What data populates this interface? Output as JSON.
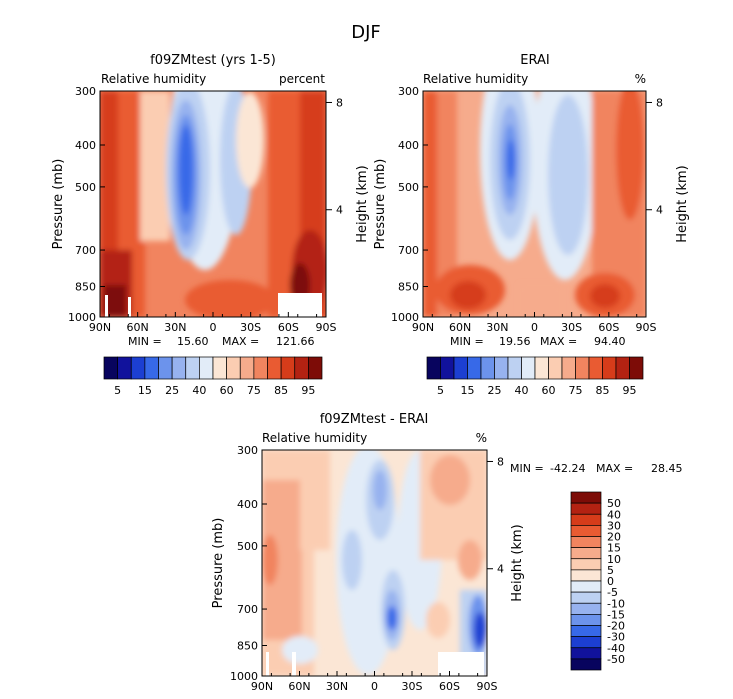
{
  "figure": {
    "title": "DJF"
  },
  "chart_data": [
    {
      "type": "heatmap",
      "title": "f09ZMtest (yrs 1-5)",
      "subtitle_left": "Relative humidity",
      "subtitle_right": "percent",
      "ylabel": "Pressure (mb)",
      "ylabel_right": "Height (km)",
      "x_ticks": [
        "90N",
        "60N",
        "30N",
        "0",
        "30S",
        "60S",
        "90S"
      ],
      "y_ticks": [
        "300",
        "400",
        "500",
        "700",
        "850",
        "1000"
      ],
      "right_ticks": [
        "8",
        "4"
      ],
      "min_label": "MIN =",
      "min_value": "15.60",
      "max_label": "MAX =",
      "max_value": "121.66",
      "colorbar_labels": [
        "5",
        "15",
        "25",
        "40",
        "60",
        "75",
        "85",
        "95"
      ]
    },
    {
      "type": "heatmap",
      "title": "ERAI",
      "subtitle_left": "Relative humidity",
      "subtitle_right": "%",
      "ylabel": "Pressure (mb)",
      "ylabel_right": "Height (km)",
      "x_ticks": [
        "90N",
        "60N",
        "30N",
        "0",
        "30S",
        "60S",
        "90S"
      ],
      "y_ticks": [
        "300",
        "400",
        "500",
        "700",
        "850",
        "1000"
      ],
      "right_ticks": [
        "8",
        "4"
      ],
      "min_label": "MIN =",
      "min_value": "19.56",
      "max_label": "MAX =",
      "max_value": "94.40",
      "colorbar_labels": [
        "5",
        "15",
        "25",
        "40",
        "60",
        "75",
        "85",
        "95"
      ]
    },
    {
      "type": "heatmap",
      "title": "f09ZMtest - ERAI",
      "subtitle_left": "Relative humidity",
      "subtitle_right": "%",
      "ylabel": "Pressure (mb)",
      "ylabel_right": "Height (km)",
      "x_ticks": [
        "90N",
        "60N",
        "30N",
        "0",
        "30S",
        "60S",
        "90S"
      ],
      "y_ticks": [
        "300",
        "400",
        "500",
        "700",
        "850",
        "1000"
      ],
      "right_ticks": [
        "8",
        "4"
      ],
      "min_label": "MIN =",
      "min_value": "-42.24",
      "max_label": "MAX =",
      "max_value": "28.45",
      "colorbar_labels": [
        "50",
        "40",
        "30",
        "20",
        "15",
        "10",
        "5",
        "0",
        "-5",
        "-10",
        "-15",
        "-20",
        "-30",
        "-40",
        "-50"
      ]
    }
  ],
  "colors": {
    "abs_scale": [
      "#08045e",
      "#11129c",
      "#1c3fd2",
      "#3769e8",
      "#6c93ec",
      "#97b2ef",
      "#bdd1f2",
      "#e2ecf8",
      "#fbe6d5",
      "#fbcdb2",
      "#f6ab8c",
      "#f1845f",
      "#e95b32",
      "#d63c1a",
      "#b32212",
      "#7d0c07"
    ],
    "diff_scale": [
      "#7d0c07",
      "#b32212",
      "#d63c1a",
      "#e95b32",
      "#f1845f",
      "#f6ab8c",
      "#fbcdb2",
      "#fbe6d5",
      "#e2ecf8",
      "#bdd1f2",
      "#97b2ef",
      "#6c93ec",
      "#3769e8",
      "#1c3fd2",
      "#11129c",
      "#08045e"
    ]
  }
}
